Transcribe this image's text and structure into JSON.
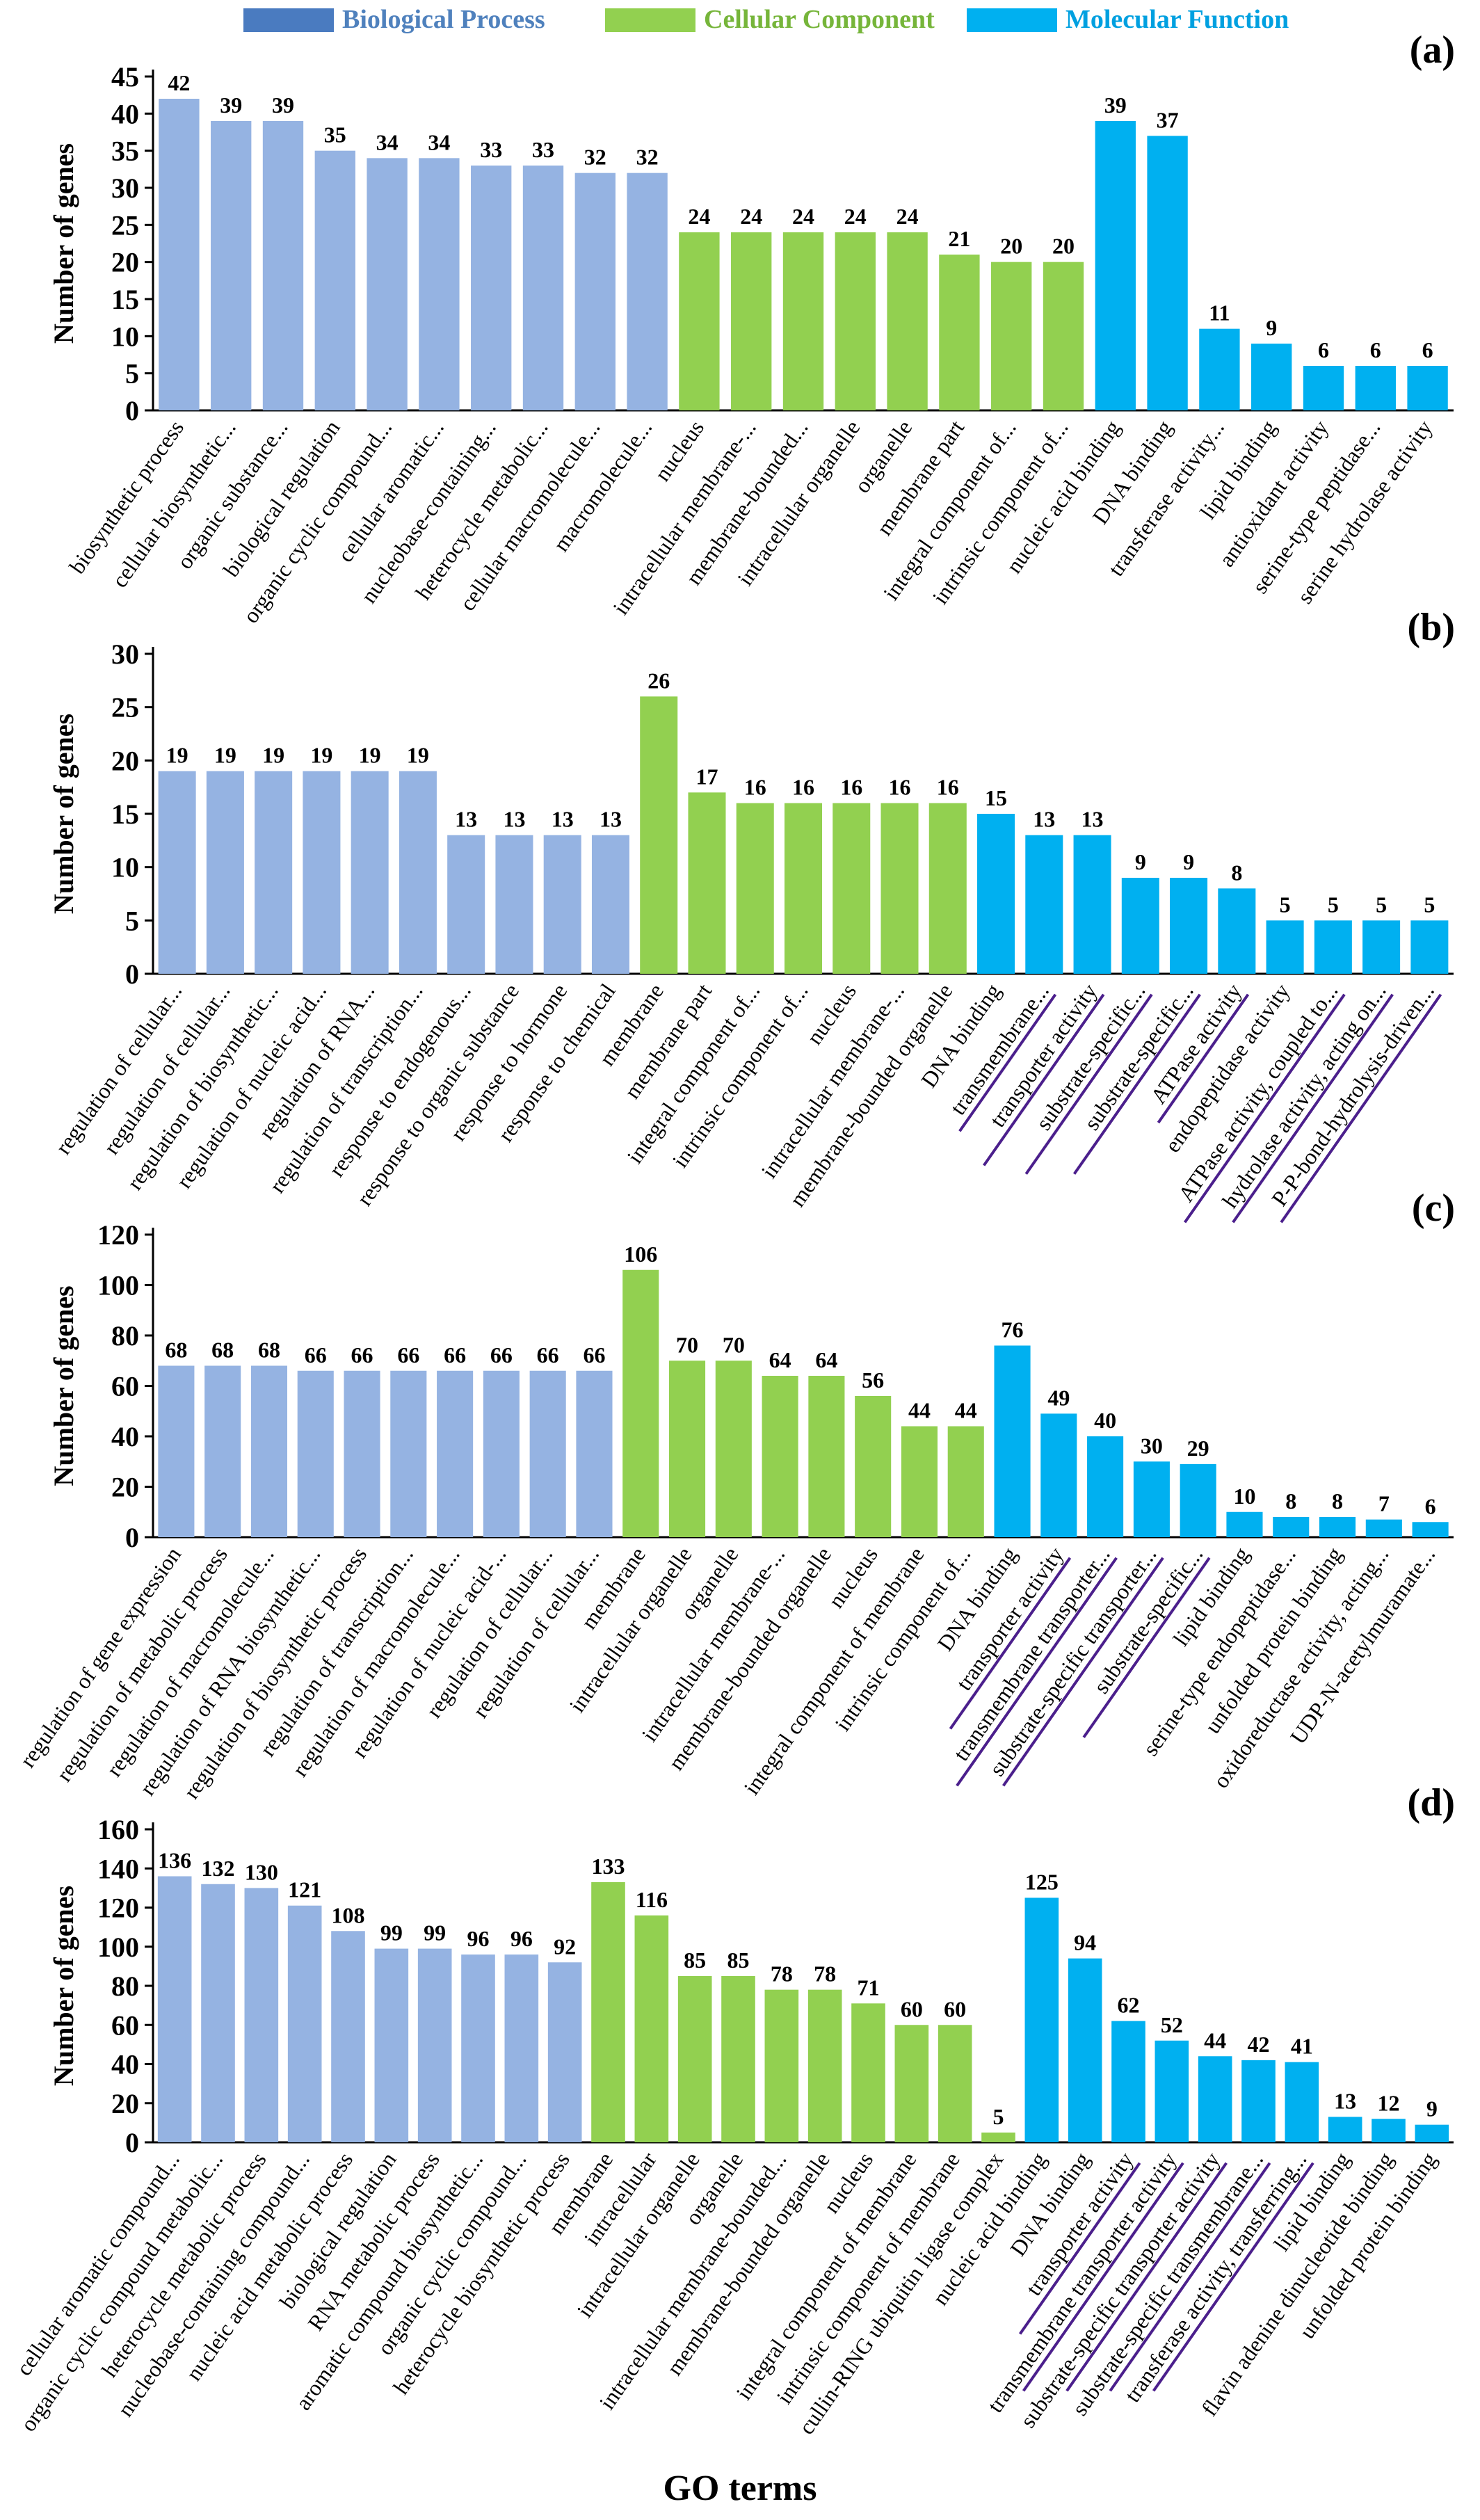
{
  "legend": [
    {
      "label": "Biological Process",
      "color": "#4a7bc0",
      "text_color": "#4f81bd"
    },
    {
      "label": "Cellular Component",
      "color": "#92d050",
      "text_color": "#76b53a"
    },
    {
      "label": "Molecular Function",
      "color": "#00b0f0",
      "text_color": "#00a0e0"
    }
  ],
  "x_axis_title": "GO terms",
  "y_axis_title": "Number of genes",
  "colors": {
    "BP": "#95b3e2",
    "CC": "#92d050",
    "MF": "#00b0f0",
    "underline": "#4b1f8c"
  },
  "chart_data": [
    {
      "panel": "(a)",
      "type": "bar",
      "ylabel": "Number of genes",
      "ylim": [
        0,
        45
      ],
      "ytick_step": 5,
      "categories": [
        "biosynthetic process",
        "cellular biosynthetic...",
        "organic substance...",
        "biological regulation",
        "organic cyclic compound...",
        "cellular aromatic...",
        "nucleobase-containing...",
        "heterocycle metabolic...",
        "cellular macromolecule...",
        "macromolecule...",
        "nucleus",
        "intracellular membrane-...",
        "membrane-bounded...",
        "intracellular organelle",
        "organelle",
        "membrane part",
        "integral component of...",
        "intrinsic component of...",
        "nucleic acid binding",
        "DNA binding",
        "transferase activity...",
        "lipid binding",
        "antioxidant activity",
        "serine-type peptidase...",
        "serine hydrolase activity"
      ],
      "values": [
        42,
        39,
        39,
        35,
        34,
        34,
        33,
        33,
        32,
        32,
        24,
        24,
        24,
        24,
        24,
        21,
        20,
        20,
        39,
        37,
        11,
        9,
        6,
        6,
        6
      ],
      "groups": [
        "BP",
        "BP",
        "BP",
        "BP",
        "BP",
        "BP",
        "BP",
        "BP",
        "BP",
        "BP",
        "CC",
        "CC",
        "CC",
        "CC",
        "CC",
        "CC",
        "CC",
        "CC",
        "MF",
        "MF",
        "MF",
        "MF",
        "MF",
        "MF",
        "MF"
      ],
      "underlined": []
    },
    {
      "panel": "(b)",
      "type": "bar",
      "ylabel": "Number of genes",
      "ylim": [
        0,
        30
      ],
      "ytick_step": 5,
      "categories": [
        "regulation of cellular...",
        "regulation of cellular...",
        "regulation of biosynthetic...",
        "regulation of nucleic acid...",
        "regulation of RNA...",
        "regulation of transcription...",
        "response to endogenous...",
        "response to organic substance",
        "response to hormone",
        "response to chemical",
        "membrane",
        "membrane part",
        "integral component of...",
        "intrinsic component of...",
        "nucleus",
        "intracellular membrane-...",
        "membrane-bounded organelle",
        "DNA binding",
        "transmembrane...",
        "transporter activity",
        "substrate-specific...",
        "substrate-specific...",
        "ATPase activity",
        "endopeptidase activity",
        "ATPase activity, coupled to...",
        "hydrolase activity, acting on...",
        "P-P-bond-hydrolysis-driven..."
      ],
      "values": [
        19,
        19,
        19,
        19,
        19,
        19,
        13,
        13,
        13,
        13,
        26,
        17,
        16,
        16,
        16,
        16,
        16,
        15,
        13,
        13,
        9,
        9,
        8,
        5,
        5,
        5,
        5
      ],
      "groups": [
        "BP",
        "BP",
        "BP",
        "BP",
        "BP",
        "BP",
        "BP",
        "BP",
        "BP",
        "BP",
        "CC",
        "CC",
        "CC",
        "CC",
        "CC",
        "CC",
        "CC",
        "MF",
        "MF",
        "MF",
        "MF",
        "MF",
        "MF",
        "MF",
        "MF",
        "MF",
        "MF"
      ],
      "underlined": [
        18,
        19,
        20,
        21,
        22,
        24,
        25,
        26
      ]
    },
    {
      "panel": "(c)",
      "type": "bar",
      "ylabel": "Number of genes",
      "ylim": [
        0,
        120
      ],
      "ytick_step": 20,
      "categories": [
        "regulation of gene expression",
        "regulation of metabolic process",
        "regulation of macromolecule...",
        "regulation of RNA biosynthetic...",
        "regulation of biosynthetic process",
        "regulation of transcription...",
        "regulation of macromolecule...",
        "regulation of nucleic acid-...",
        "regulation of cellular...",
        "regulation of cellular...",
        "membrane",
        "intracellular organelle",
        "organelle",
        "intracellular membrane-...",
        "membrane-bounded organelle",
        "nucleus",
        "integral component of membrane",
        "intrinsic component of...",
        "DNA binding",
        "transporter activity",
        "transmembrane transporter...",
        "substrate-specific transporter...",
        "substrate-specific...",
        "lipid binding",
        "serine-type endopeptidase...",
        "unfolded protein binding",
        "oxidoreductase activity, acting...",
        "UDP-N-acetylmuramate..."
      ],
      "values": [
        68,
        68,
        68,
        66,
        66,
        66,
        66,
        66,
        66,
        66,
        106,
        70,
        70,
        64,
        64,
        56,
        44,
        44,
        76,
        49,
        40,
        30,
        29,
        10,
        8,
        8,
        7,
        6
      ],
      "groups": [
        "BP",
        "BP",
        "BP",
        "BP",
        "BP",
        "BP",
        "BP",
        "BP",
        "BP",
        "BP",
        "CC",
        "CC",
        "CC",
        "CC",
        "CC",
        "CC",
        "CC",
        "CC",
        "MF",
        "MF",
        "MF",
        "MF",
        "MF",
        "MF",
        "MF",
        "MF",
        "MF",
        "MF"
      ],
      "underlined": [
        19,
        20,
        21,
        22
      ]
    },
    {
      "panel": "(d)",
      "type": "bar",
      "ylabel": "Number of genes",
      "ylim": [
        0,
        160
      ],
      "ytick_step": 20,
      "categories": [
        "cellular aromatic compound...",
        "organic cyclic compound metabolic...",
        "heterocycle metabolic process",
        "nucleobase-containing compound...",
        "nucleic acid metabolic process",
        "biological regulation",
        "RNA metabolic process",
        "aromatic compound biosynthetic...",
        "organic cyclic compound...",
        "heterocycle biosynthetic process",
        "membrane",
        "intracellular",
        "intracellular organelle",
        "organelle",
        "intracellular membrane-bounded...",
        "membrane-bounded organelle",
        "nucleus",
        "integral component of membrane",
        "intrinsic component of membrane",
        "cullin-RING ubiquitin ligase complex",
        "nucleic acid binding",
        "DNA binding",
        "transporter activity",
        "transmembrane transporter activity",
        "substrate-specific transporter activity",
        "substrate-specific transmembrane...",
        "transferase activity, transferring...",
        "lipid binding",
        "flavin adenine dinucleotide binding",
        "unfolded protein binding"
      ],
      "values": [
        136,
        132,
        130,
        121,
        108,
        99,
        99,
        96,
        96,
        92,
        133,
        116,
        85,
        85,
        78,
        78,
        71,
        60,
        60,
        5,
        125,
        94,
        62,
        52,
        44,
        42,
        41,
        13,
        12,
        9
      ],
      "groups": [
        "BP",
        "BP",
        "BP",
        "BP",
        "BP",
        "BP",
        "BP",
        "BP",
        "BP",
        "BP",
        "CC",
        "CC",
        "CC",
        "CC",
        "CC",
        "CC",
        "CC",
        "CC",
        "CC",
        "CC",
        "MF",
        "MF",
        "MF",
        "MF",
        "MF",
        "MF",
        "MF",
        "MF",
        "MF",
        "MF"
      ],
      "underlined": [
        22,
        23,
        24,
        25,
        26
      ]
    }
  ]
}
